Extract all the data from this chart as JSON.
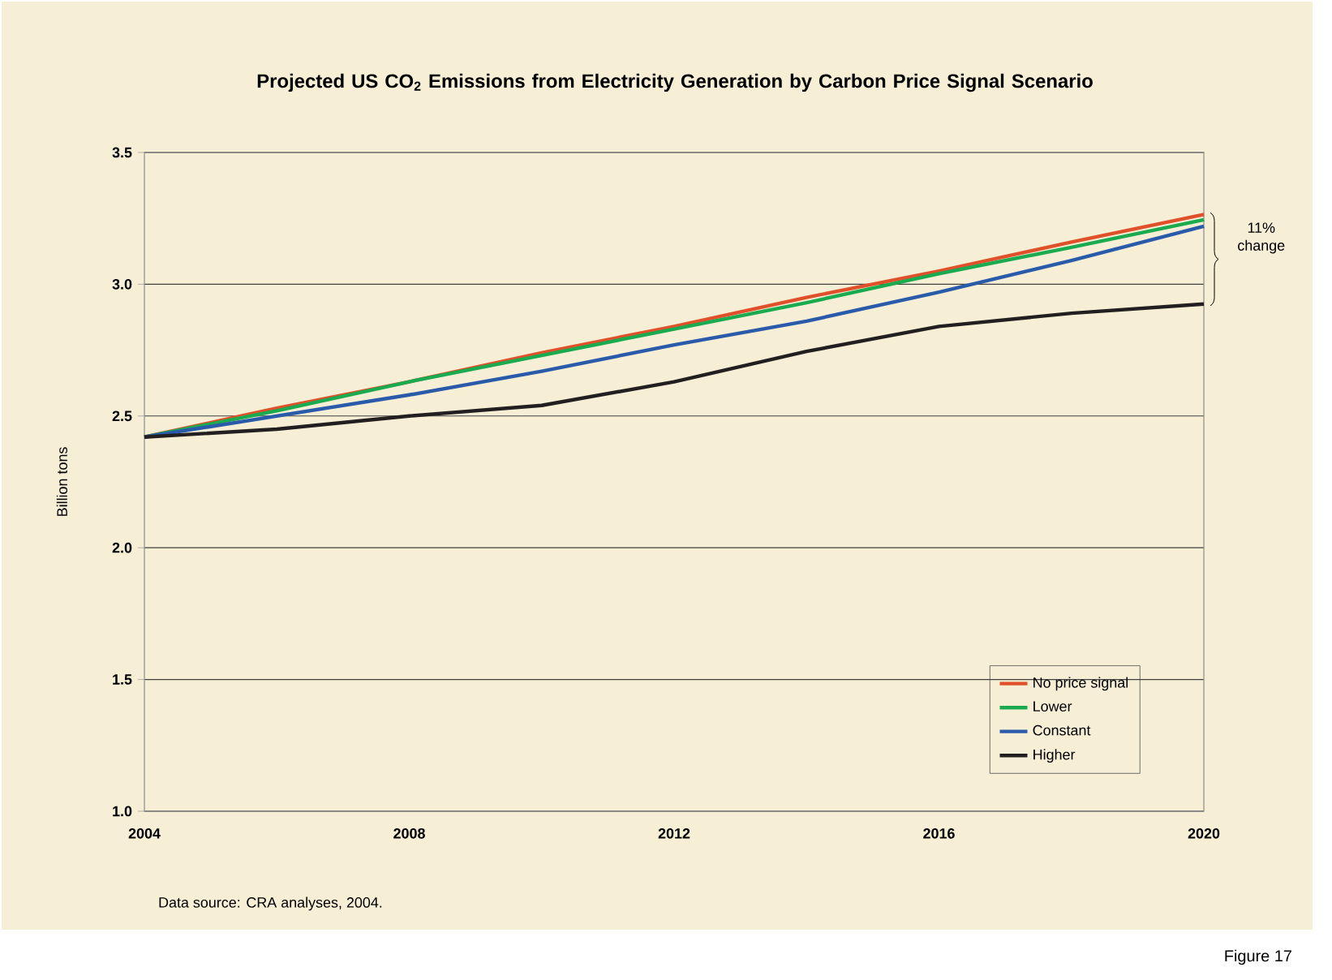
{
  "chart_data": {
    "type": "line",
    "title": "Projected US CO$_{2}$ Emissions from Electricity Generation by Carbon Price Signal Scenario",
    "ylabel": "Billion tons",
    "x": [
      2004,
      2006,
      2008,
      2010,
      2012,
      2014,
      2016,
      2018,
      2020
    ],
    "series": [
      {
        "name": "No price signal",
        "color": "#e0502a",
        "values": [
          2.42,
          2.53,
          2.63,
          2.74,
          2.84,
          2.95,
          3.05,
          3.16,
          3.265
        ]
      },
      {
        "name": "Lower",
        "color": "#1aaa50",
        "values": [
          2.42,
          2.52,
          2.63,
          2.73,
          2.83,
          2.93,
          3.04,
          3.14,
          3.245
        ]
      },
      {
        "name": "Constant",
        "color": "#2a5aaa",
        "values": [
          2.42,
          2.5,
          2.58,
          2.67,
          2.77,
          2.86,
          2.97,
          3.09,
          3.22
        ]
      },
      {
        "name": "Higher",
        "color": "#231f20",
        "values": [
          2.42,
          2.45,
          2.5,
          2.54,
          2.63,
          2.745,
          2.84,
          2.89,
          2.925
        ]
      }
    ],
    "xlim": [
      2004,
      2020
    ],
    "xticks": [
      2004,
      2008,
      2012,
      2016,
      2020
    ],
    "ylim": [
      1.0,
      3.5
    ],
    "yticks": [
      {
        "value": 1.0,
        "label": "1.0"
      },
      {
        "value": 1.5,
        "label": "1.5"
      },
      {
        "value": 2.0,
        "label": "2.0"
      },
      {
        "value": 2.5,
        "label": "2.5"
      },
      {
        "value": 3.0,
        "label": "3.0"
      },
      {
        "value": 3.5,
        "label": "3.5"
      }
    ],
    "grid": "y",
    "legend": "bottom right",
    "marker": "none",
    "line_style": "solid",
    "annotations": [
      "Data source: CRA analyses, 2004.",
      "Figure 17",
      "11% change"
    ]
  }
}
